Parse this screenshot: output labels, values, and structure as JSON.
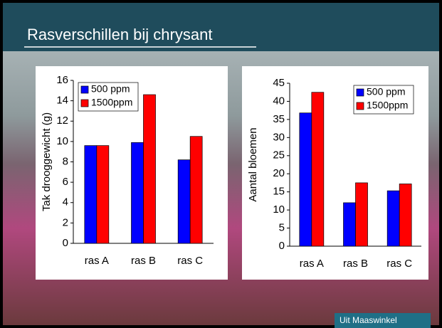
{
  "title": "Rasverschillen bij chrysant",
  "source": "Uit Maaswinkel",
  "chart_data": [
    {
      "type": "bar",
      "y_label": "Tak drooggewicht (g)",
      "categories": [
        "ras A",
        "ras B",
        "ras C"
      ],
      "series": [
        {
          "name": "500 ppm",
          "color": "#0000ff",
          "values": [
            9.6,
            9.9,
            8.2
          ]
        },
        {
          "name": "1500ppm",
          "color": "#ff0000",
          "values": [
            9.6,
            14.6,
            10.5
          ]
        }
      ],
      "ylim": [
        0,
        16
      ],
      "yticks": [
        0,
        2,
        4,
        6,
        8,
        10,
        12,
        14,
        16
      ],
      "grid": false,
      "legend": "top-right"
    },
    {
      "type": "bar",
      "y_label": "Aantal bloemen",
      "categories": [
        "ras A",
        "ras B",
        "ras C"
      ],
      "series": [
        {
          "name": "500 ppm",
          "color": "#0000ff",
          "values": [
            36.8,
            12,
            15.3
          ]
        },
        {
          "name": "1500ppm",
          "color": "#ff0000",
          "values": [
            42.5,
            17.5,
            17.2
          ]
        }
      ],
      "ylim": [
        0,
        45
      ],
      "yticks": [
        0,
        5,
        10,
        15,
        20,
        25,
        30,
        35,
        40,
        45
      ],
      "grid": false,
      "legend": "top-right"
    }
  ]
}
